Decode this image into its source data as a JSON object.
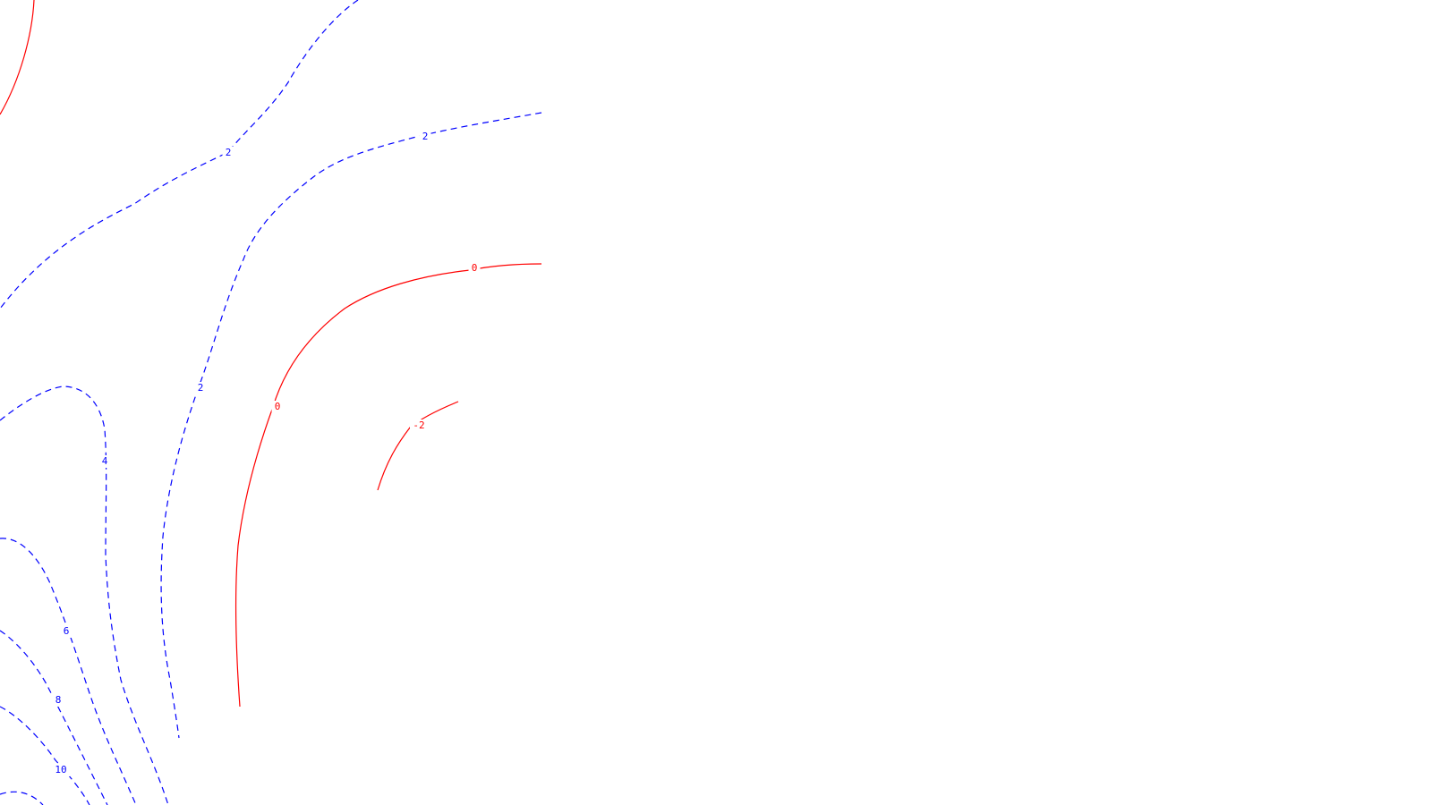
{
  "map": {
    "type": "contour-plot",
    "colors": {
      "positive": "#0000ff",
      "zero_and_negative": "#ff0000",
      "background": "#ffffff"
    },
    "line_styles": {
      "positive": "dashed",
      "zero_and_negative": "solid"
    },
    "contours": [
      {
        "id": "c-top-left-red",
        "level": "",
        "color_key": "zero_and_negative",
        "style": "solid"
      },
      {
        "id": "c-2-upper-left",
        "level": "2",
        "color_key": "positive",
        "style": "dashed"
      },
      {
        "id": "c-2-upper-right",
        "level": "2",
        "color_key": "positive",
        "style": "dashed"
      },
      {
        "id": "c-0",
        "level": "0",
        "color_key": "zero_and_negative",
        "style": "solid"
      },
      {
        "id": "c-neg2",
        "level": "-2",
        "color_key": "zero_and_negative",
        "style": "solid"
      },
      {
        "id": "c-4",
        "level": "4",
        "color_key": "positive",
        "style": "dashed"
      },
      {
        "id": "c-6",
        "level": "6",
        "color_key": "positive",
        "style": "dashed"
      },
      {
        "id": "c-8",
        "level": "8",
        "color_key": "positive",
        "style": "dashed"
      },
      {
        "id": "c-10",
        "level": "10",
        "color_key": "positive",
        "style": "dashed"
      },
      {
        "id": "c-bottom-corner",
        "level": "",
        "color_key": "positive",
        "style": "dashed"
      }
    ],
    "labels": [
      {
        "id": "lbl-2-a",
        "text": "2",
        "color_key": "positive"
      },
      {
        "id": "lbl-2-b",
        "text": "2",
        "color_key": "positive"
      },
      {
        "id": "lbl-2-c",
        "text": "2",
        "color_key": "positive"
      },
      {
        "id": "lbl-0-a",
        "text": "0",
        "color_key": "zero_and_negative"
      },
      {
        "id": "lbl-0-b",
        "text": "0",
        "color_key": "zero_and_negative"
      },
      {
        "id": "lbl-neg2",
        "text": "-2",
        "color_key": "zero_and_negative"
      },
      {
        "id": "lbl-4",
        "text": "4",
        "color_key": "positive"
      },
      {
        "id": "lbl-6",
        "text": "6",
        "color_key": "positive"
      },
      {
        "id": "lbl-8",
        "text": "8",
        "color_key": "positive"
      },
      {
        "id": "lbl-10",
        "text": "10",
        "color_key": "positive"
      }
    ]
  }
}
